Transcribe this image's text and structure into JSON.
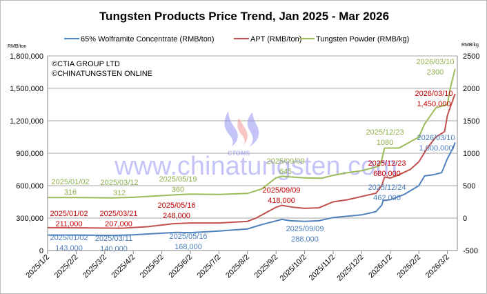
{
  "chart_data": {
    "type": "line",
    "title": "Tungsten Products Price Trend, Jan 2025 - Mar 2026",
    "left_axis": {
      "unit": "RMB/ton",
      "ylim": [
        0,
        1800000
      ],
      "ticks": [
        "0",
        "300,000",
        "600,000",
        "900,000",
        "1,200,000",
        "1,500,000",
        "1,800,000"
      ],
      "tick_values": [
        0,
        300000,
        600000,
        900000,
        1200000,
        1500000,
        1800000
      ]
    },
    "right_axis": {
      "unit": "RMB/kg",
      "ylim": [
        -500,
        2500
      ],
      "ticks": [
        "-500",
        "0",
        "500",
        "1000",
        "1500",
        "2000",
        "2500"
      ],
      "tick_values": [
        -500,
        0,
        500,
        1000,
        1500,
        2000,
        2500
      ]
    },
    "x_ticks": [
      "2025/1/2",
      "2025/2/2",
      "2025/3/2",
      "2025/4/2",
      "2025/5/2",
      "2025/6/2",
      "2025/7/2",
      "2025/8/2",
      "2025/9/2",
      "2025/10/2",
      "2025/11/2",
      "2025/12/2",
      "2026/1/2",
      "2026/2/2",
      "2026/3/2"
    ],
    "x_unit_note": "x values are months since 2025/1/2",
    "grid": true,
    "legend_position": "top",
    "copyright": [
      "©CTIA GROUP LTD",
      "©CHINATUNGSTEN ONLINE"
    ],
    "watermark": "www.chinatungsten.com",
    "logo_text": "CTOMS",
    "series": [
      {
        "name": "65% Wolframite Concentrate (RMB/ton)",
        "axis": "left",
        "color": "#4f81bd",
        "label_color": "#4a7ebb",
        "x": [
          0,
          1,
          2.3,
          3,
          4,
          4.5,
          5,
          6,
          7,
          7.5,
          8.2,
          8.5,
          9,
          9.5,
          10,
          11,
          11.5,
          11.7,
          11.75,
          12,
          12.5,
          13,
          13.2,
          13.5,
          13.8,
          14,
          14.2,
          14.27
        ],
        "y": [
          143000,
          143000,
          140000,
          145000,
          160000,
          168000,
          165000,
          180000,
          200000,
          240000,
          288000,
          275000,
          270000,
          275000,
          305000,
          330000,
          360000,
          420000,
          462000,
          470000,
          520000,
          600000,
          690000,
          700000,
          720000,
          850000,
          950000,
          1000000
        ],
        "annotations": [
          {
            "date": "2025/01/02",
            "value": "143,000"
          },
          {
            "date": "2025/03/11",
            "value": "140,000"
          },
          {
            "date": "2025/05/16",
            "value": "168,000"
          },
          {
            "date": "2025/09/09",
            "value": "288,000"
          },
          {
            "date": "2025/12/24",
            "value": "462,000"
          },
          {
            "date": "2026/03/10",
            "value": "1,000,000"
          }
        ]
      },
      {
        "name": "APT (RMB/ton)",
        "axis": "left",
        "color": "#c0504d",
        "label_color": "#c00000",
        "x": [
          0,
          1,
          2.6,
          3.5,
          4.4,
          5,
          6,
          7,
          7.3,
          8,
          8.2,
          8.6,
          9,
          9.5,
          10,
          10.5,
          11,
          11.5,
          11.7,
          11.8,
          12,
          12.3,
          12.7,
          13,
          13.3,
          13.6,
          13.9,
          14,
          14.2,
          14.27
        ],
        "y": [
          211000,
          210000,
          207000,
          220000,
          248000,
          255000,
          255000,
          270000,
          300000,
          400000,
          418000,
          400000,
          390000,
          395000,
          450000,
          470000,
          500000,
          530000,
          600000,
          680000,
          670000,
          700000,
          750000,
          820000,
          950000,
          1050000,
          1100000,
          1250000,
          1400000,
          1450000
        ],
        "annotations": [
          {
            "date": "2025/01/02",
            "value": "211,000"
          },
          {
            "date": "2025/03/21",
            "value": "207,000"
          },
          {
            "date": "2025/05/16",
            "value": "248,000"
          },
          {
            "date": "2025/09/09",
            "value": "418,000"
          },
          {
            "date": "2025/12/23",
            "value": "680,000"
          },
          {
            "date": "2026/03/10",
            "value": "1,450,000"
          }
        ]
      },
      {
        "name": "Tungsten Powder (RMB/kg)",
        "axis": "right",
        "color": "#9bbb59",
        "label_color": "#8db04c",
        "x": [
          0,
          1,
          2.3,
          3,
          4.5,
          5,
          6,
          7,
          7.5,
          8,
          8.2,
          9,
          9.6,
          10,
          10.5,
          11,
          11.6,
          11.7,
          11.8,
          12.3,
          12.6,
          13,
          13.2,
          13.6,
          14,
          14.1,
          14.27
        ],
        "y": [
          316,
          316,
          312,
          320,
          360,
          370,
          365,
          380,
          450,
          620,
          645,
          620,
          615,
          660,
          700,
          730,
          800,
          900,
          1080,
          1080,
          1150,
          1250,
          1450,
          1700,
          1750,
          2000,
          2300
        ],
        "annotations": [
          {
            "date": "2025/01/02",
            "value": "316"
          },
          {
            "date": "2025/03/12",
            "value": "312"
          },
          {
            "date": "2025/05/19",
            "value": "360"
          },
          {
            "date": "2025/09/09",
            "value": "645"
          },
          {
            "date": "2025/12/23",
            "value": "1080"
          },
          {
            "date": "2026/03/10",
            "value": "2300"
          }
        ]
      }
    ]
  }
}
